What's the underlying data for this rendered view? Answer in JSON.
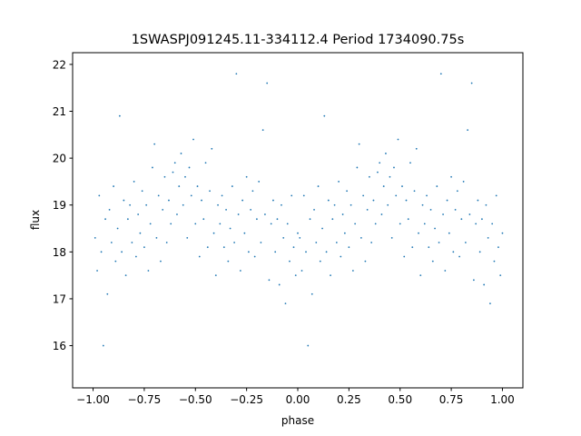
{
  "chart_data": {
    "type": "scatter",
    "title": "1SWASPJ091245.11-334112.4 Period 1734090.75s",
    "xlabel": "phase",
    "ylabel": "flux",
    "xlim": [
      -1.1,
      1.1
    ],
    "ylim": [
      15.1,
      22.25
    ],
    "xticks": [
      -1.0,
      -0.75,
      -0.5,
      -0.25,
      0.0,
      0.25,
      0.5,
      0.75,
      1.0
    ],
    "xtick_labels": [
      "−1.00",
      "−0.75",
      "−0.50",
      "−0.25",
      "0.00",
      "0.25",
      "0.50",
      "0.75",
      "1.00"
    ],
    "yticks": [
      16,
      17,
      18,
      19,
      20,
      21,
      22
    ],
    "ytick_labels": [
      "16",
      "17",
      "18",
      "19",
      "20",
      "21",
      "22"
    ],
    "grid": false,
    "marker_color": "#1f77b4",
    "points": [
      [
        -0.99,
        18.3
      ],
      [
        -0.98,
        17.6
      ],
      [
        -0.97,
        19.2
      ],
      [
        -0.96,
        18.0
      ],
      [
        -0.95,
        16.0
      ],
      [
        -0.94,
        18.7
      ],
      [
        -0.93,
        17.1
      ],
      [
        -0.92,
        18.9
      ],
      [
        -0.91,
        18.2
      ],
      [
        -0.9,
        19.4
      ],
      [
        -0.89,
        17.8
      ],
      [
        -0.88,
        18.5
      ],
      [
        -0.87,
        20.9
      ],
      [
        -0.86,
        18.0
      ],
      [
        -0.85,
        19.1
      ],
      [
        -0.84,
        17.5
      ],
      [
        -0.83,
        18.7
      ],
      [
        -0.82,
        19.0
      ],
      [
        -0.81,
        18.2
      ],
      [
        -0.8,
        19.5
      ],
      [
        -0.79,
        17.9
      ],
      [
        -0.78,
        18.8
      ],
      [
        -0.77,
        18.4
      ],
      [
        -0.76,
        19.3
      ],
      [
        -0.75,
        18.1
      ],
      [
        -0.74,
        19.0
      ],
      [
        -0.73,
        17.6
      ],
      [
        -0.72,
        18.6
      ],
      [
        -0.71,
        19.8
      ],
      [
        -0.7,
        20.3
      ],
      [
        -0.69,
        18.3
      ],
      [
        -0.68,
        19.2
      ],
      [
        -0.67,
        17.8
      ],
      [
        -0.66,
        18.9
      ],
      [
        -0.65,
        19.6
      ],
      [
        -0.64,
        18.2
      ],
      [
        -0.63,
        19.1
      ],
      [
        -0.62,
        18.6
      ],
      [
        -0.61,
        19.7
      ],
      [
        -0.6,
        19.9
      ],
      [
        -0.59,
        18.8
      ],
      [
        -0.58,
        19.4
      ],
      [
        -0.57,
        20.1
      ],
      [
        -0.56,
        19.0
      ],
      [
        -0.55,
        19.6
      ],
      [
        -0.54,
        18.3
      ],
      [
        -0.53,
        19.8
      ],
      [
        -0.52,
        19.2
      ],
      [
        -0.51,
        20.4
      ],
      [
        -0.5,
        18.6
      ],
      [
        -0.49,
        19.4
      ],
      [
        -0.48,
        17.9
      ],
      [
        -0.47,
        19.1
      ],
      [
        -0.46,
        18.7
      ],
      [
        -0.45,
        19.9
      ],
      [
        -0.44,
        18.1
      ],
      [
        -0.43,
        19.3
      ],
      [
        -0.42,
        20.2
      ],
      [
        -0.41,
        18.4
      ],
      [
        -0.4,
        17.5
      ],
      [
        -0.39,
        19.0
      ],
      [
        -0.38,
        18.6
      ],
      [
        -0.37,
        19.2
      ],
      [
        -0.36,
        18.1
      ],
      [
        -0.35,
        18.9
      ],
      [
        -0.34,
        17.8
      ],
      [
        -0.33,
        18.5
      ],
      [
        -0.32,
        19.4
      ],
      [
        -0.31,
        18.2
      ],
      [
        -0.3,
        21.8
      ],
      [
        -0.29,
        18.8
      ],
      [
        -0.28,
        17.6
      ],
      [
        -0.27,
        19.1
      ],
      [
        -0.26,
        18.4
      ],
      [
        -0.25,
        19.6
      ],
      [
        -0.24,
        18.0
      ],
      [
        -0.23,
        18.9
      ],
      [
        -0.22,
        19.3
      ],
      [
        -0.21,
        17.9
      ],
      [
        -0.2,
        18.7
      ],
      [
        -0.19,
        19.5
      ],
      [
        -0.18,
        18.2
      ],
      [
        -0.17,
        20.6
      ],
      [
        -0.16,
        18.8
      ],
      [
        -0.15,
        21.6
      ],
      [
        -0.14,
        17.4
      ],
      [
        -0.13,
        18.6
      ],
      [
        -0.12,
        19.1
      ],
      [
        -0.11,
        18.0
      ],
      [
        -0.1,
        18.7
      ],
      [
        -0.09,
        17.3
      ],
      [
        -0.08,
        19.0
      ],
      [
        -0.07,
        18.3
      ],
      [
        -0.06,
        16.9
      ],
      [
        -0.05,
        18.6
      ],
      [
        -0.04,
        17.8
      ],
      [
        -0.03,
        19.2
      ],
      [
        -0.02,
        18.1
      ],
      [
        -0.01,
        17.5
      ],
      [
        0.0,
        18.4
      ],
      [
        0.01,
        18.3
      ],
      [
        0.02,
        17.6
      ],
      [
        0.03,
        19.2
      ],
      [
        0.04,
        18.0
      ],
      [
        0.05,
        16.0
      ],
      [
        0.06,
        18.7
      ],
      [
        0.07,
        17.1
      ],
      [
        0.08,
        18.9
      ],
      [
        0.09,
        18.2
      ],
      [
        0.1,
        19.4
      ],
      [
        0.11,
        17.8
      ],
      [
        0.12,
        18.5
      ],
      [
        0.13,
        20.9
      ],
      [
        0.14,
        18.0
      ],
      [
        0.15,
        19.1
      ],
      [
        0.16,
        17.5
      ],
      [
        0.17,
        18.7
      ],
      [
        0.18,
        19.0
      ],
      [
        0.19,
        18.2
      ],
      [
        0.2,
        19.5
      ],
      [
        0.21,
        17.9
      ],
      [
        0.22,
        18.8
      ],
      [
        0.23,
        18.4
      ],
      [
        0.24,
        19.3
      ],
      [
        0.25,
        18.1
      ],
      [
        0.26,
        19.0
      ],
      [
        0.27,
        17.6
      ],
      [
        0.28,
        18.6
      ],
      [
        0.29,
        19.8
      ],
      [
        0.3,
        20.3
      ],
      [
        0.31,
        18.3
      ],
      [
        0.32,
        19.2
      ],
      [
        0.33,
        17.8
      ],
      [
        0.34,
        18.9
      ],
      [
        0.35,
        19.6
      ],
      [
        0.36,
        18.2
      ],
      [
        0.37,
        19.1
      ],
      [
        0.38,
        18.6
      ],
      [
        0.39,
        19.7
      ],
      [
        0.4,
        19.9
      ],
      [
        0.41,
        18.8
      ],
      [
        0.42,
        19.4
      ],
      [
        0.43,
        20.1
      ],
      [
        0.44,
        19.0
      ],
      [
        0.45,
        19.6
      ],
      [
        0.46,
        18.3
      ],
      [
        0.47,
        19.8
      ],
      [
        0.48,
        19.2
      ],
      [
        0.49,
        20.4
      ],
      [
        0.5,
        18.6
      ],
      [
        0.51,
        19.4
      ],
      [
        0.52,
        17.9
      ],
      [
        0.53,
        19.1
      ],
      [
        0.54,
        18.7
      ],
      [
        0.55,
        19.9
      ],
      [
        0.56,
        18.1
      ],
      [
        0.57,
        19.3
      ],
      [
        0.58,
        20.2
      ],
      [
        0.59,
        18.4
      ],
      [
        0.6,
        17.5
      ],
      [
        0.61,
        19.0
      ],
      [
        0.62,
        18.6
      ],
      [
        0.63,
        19.2
      ],
      [
        0.64,
        18.1
      ],
      [
        0.65,
        18.9
      ],
      [
        0.66,
        17.8
      ],
      [
        0.67,
        18.5
      ],
      [
        0.68,
        19.4
      ],
      [
        0.69,
        18.2
      ],
      [
        0.7,
        21.8
      ],
      [
        0.71,
        18.8
      ],
      [
        0.72,
        17.6
      ],
      [
        0.73,
        19.1
      ],
      [
        0.74,
        18.4
      ],
      [
        0.75,
        19.6
      ],
      [
        0.76,
        18.0
      ],
      [
        0.77,
        18.9
      ],
      [
        0.78,
        19.3
      ],
      [
        0.79,
        17.9
      ],
      [
        0.8,
        18.7
      ],
      [
        0.81,
        19.5
      ],
      [
        0.82,
        18.2
      ],
      [
        0.83,
        20.6
      ],
      [
        0.84,
        18.8
      ],
      [
        0.85,
        21.6
      ],
      [
        0.86,
        17.4
      ],
      [
        0.87,
        18.6
      ],
      [
        0.88,
        19.1
      ],
      [
        0.89,
        18.0
      ],
      [
        0.9,
        18.7
      ],
      [
        0.91,
        17.3
      ],
      [
        0.92,
        19.0
      ],
      [
        0.93,
        18.3
      ],
      [
        0.94,
        16.9
      ],
      [
        0.95,
        18.6
      ],
      [
        0.96,
        17.8
      ],
      [
        0.97,
        19.2
      ],
      [
        0.98,
        18.1
      ],
      [
        0.99,
        17.5
      ],
      [
        1.0,
        18.4
      ]
    ]
  }
}
